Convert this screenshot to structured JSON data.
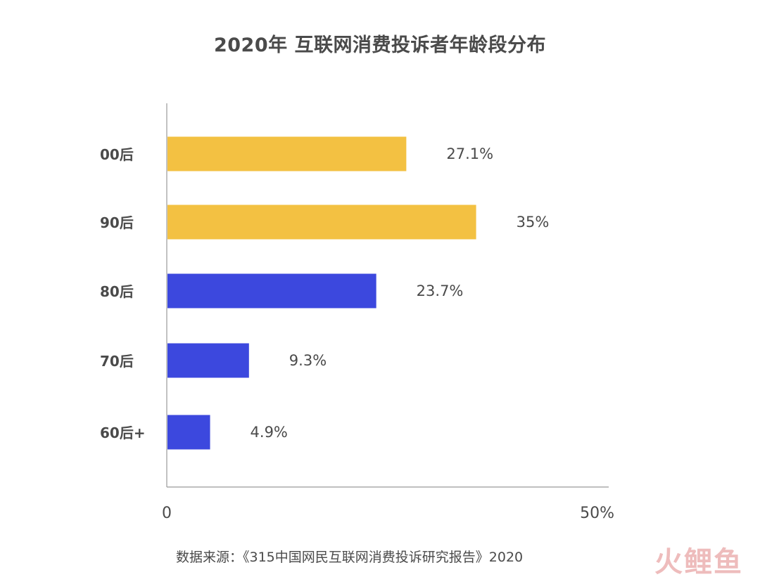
{
  "title": "2020年 互联网消费投诉者年龄段分布",
  "source": "数据来源：《315中国网民互联网消费投诉研究报告》2020",
  "watermark": "火鲤鱼",
  "colors": {
    "gold": "#F3C142",
    "blue": "#3C48DE",
    "axis": "#999999",
    "text": "#4a4a4a"
  },
  "chart_data": {
    "type": "bar",
    "orientation": "horizontal",
    "title": "2020年 互联网消费投诉者年龄段分布",
    "categories": [
      "00后",
      "90后",
      "80后",
      "70后",
      "60后+"
    ],
    "values": [
      27.1,
      35,
      23.7,
      9.3,
      4.9
    ],
    "value_labels": [
      "27.1%",
      "35%",
      "23.7%",
      "9.3%",
      "4.9%"
    ],
    "bar_colors": [
      "#F3C142",
      "#F3C142",
      "#3C48DE",
      "#3C48DE",
      "#3C48DE"
    ],
    "xlim": [
      0,
      50
    ],
    "x_ticks": [
      {
        "value": 0,
        "label": "0"
      },
      {
        "value": 50,
        "label": "50%"
      }
    ],
    "grid": false,
    "legend": "none"
  }
}
